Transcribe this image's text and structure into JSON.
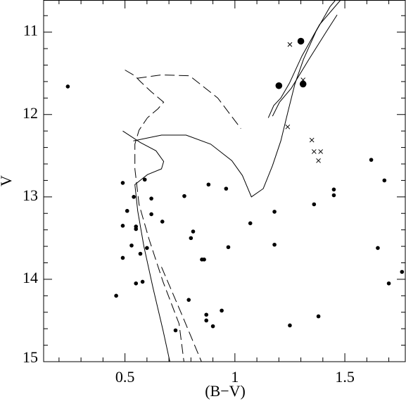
{
  "chart_data": {
    "type": "scatter",
    "xlabel": "(B−V)",
    "ylabel": "V",
    "xlim": [
      0.13,
      1.775
    ],
    "ylim": [
      10.61,
      15
    ],
    "y_inverted": true,
    "xticks": [
      0.5,
      1,
      1.5
    ],
    "yticks": [
      11,
      12,
      13,
      14,
      15
    ],
    "xminorticks": [
      0.2,
      0.3,
      0.4,
      0.6,
      0.7,
      0.8,
      0.9,
      1.1,
      1.2,
      1.3,
      1.4,
      1.6,
      1.7
    ],
    "yminorticks": [
      10.8,
      11.2,
      11.4,
      11.6,
      11.8,
      12.2,
      12.4,
      12.6,
      12.8,
      13.2,
      13.4,
      13.6,
      13.8,
      14.2,
      14.4,
      14.6,
      14.8
    ],
    "series": [
      {
        "marker": "dot",
        "color": "#000000",
        "x": [
          0.24,
          0.49,
          0.59,
          0.51,
          0.54,
          0.49,
          0.55,
          0.55,
          0.62,
          0.62,
          0.67,
          0.53,
          0.57,
          0.6,
          0.49,
          0.46,
          0.55,
          0.58,
          0.77,
          0.88,
          0.96,
          0.81,
          0.8,
          0.85,
          0.86,
          0.97,
          0.79,
          0.87,
          0.87,
          0.9,
          0.94,
          0.73,
          1.07,
          1.18,
          1.18,
          1.25,
          1.36,
          1.45,
          1.45,
          1.38,
          1.62,
          1.68,
          1.65,
          1.76,
          1.7
        ],
        "values": [
          11.66,
          12.83,
          12.79,
          13.17,
          13.0,
          13.35,
          13.36,
          13.39,
          13.02,
          13.21,
          13.3,
          13.59,
          13.69,
          13.62,
          13.74,
          14.2,
          14.05,
          14.03,
          12.99,
          12.85,
          12.9,
          13.42,
          13.5,
          13.76,
          13.76,
          13.61,
          14.25,
          14.43,
          14.5,
          14.57,
          14.38,
          14.62,
          13.32,
          13.18,
          13.58,
          14.56,
          13.09,
          12.91,
          12.98,
          14.45,
          12.55,
          12.8,
          13.62,
          13.91,
          14.05
        ]
      },
      {
        "marker": "big-dot",
        "color": "#000000",
        "x": [
          1.3,
          1.2,
          1.31
        ],
        "values": [
          11.11,
          11.65,
          11.63
        ]
      },
      {
        "marker": "cross",
        "color": "#000000",
        "x": [
          1.25,
          1.31,
          1.24,
          1.35,
          1.36,
          1.39,
          1.38
        ],
        "values": [
          11.15,
          11.58,
          12.15,
          12.31,
          12.45,
          12.45,
          12.56
        ]
      }
    ],
    "lines": [
      {
        "style": "solid",
        "x": [
          0.704,
          0.673,
          0.628,
          0.586,
          0.558,
          0.545,
          0.602,
          0.666,
          0.676,
          0.641,
          0.57,
          0.49
        ],
        "values": [
          15.0,
          14.62,
          14.11,
          13.6,
          13.17,
          12.85,
          12.73,
          12.66,
          12.57,
          12.44,
          12.34,
          12.2
        ]
      },
      {
        "style": "solid",
        "x": [
          0.538,
          0.666,
          0.778,
          0.89,
          0.986,
          1.034,
          1.075,
          1.129,
          1.171,
          1.209,
          1.241,
          1.273,
          1.312,
          1.369,
          1.433,
          1.458
        ],
        "values": [
          12.32,
          12.25,
          12.25,
          12.36,
          12.56,
          12.74,
          13.0,
          12.9,
          12.62,
          12.32,
          11.97,
          11.63,
          11.33,
          10.99,
          10.69,
          10.61
        ]
      },
      {
        "style": "solid",
        "x": [
          1.152,
          1.177,
          1.209,
          1.248,
          1.305,
          1.385,
          1.481
        ],
        "values": [
          12.04,
          11.89,
          11.8,
          11.62,
          11.29,
          10.91,
          10.61
        ]
      },
      {
        "style": "solid",
        "x": [
          1.171,
          1.203,
          1.257,
          1.337,
          1.417,
          1.465
        ],
        "values": [
          12.02,
          11.85,
          11.68,
          11.33,
          10.99,
          10.79
        ]
      },
      {
        "style": "dashed",
        "x": [
          0.5,
          0.545,
          0.57,
          0.618,
          0.676,
          0.65,
          0.602,
          0.564,
          0.545,
          0.545,
          0.564,
          0.609,
          0.673,
          0.746,
          0.768
        ],
        "values": [
          11.46,
          11.53,
          11.6,
          11.72,
          11.85,
          11.93,
          12.04,
          12.19,
          12.36,
          12.66,
          13.09,
          13.51,
          14.03,
          14.54,
          15.0
        ]
      },
      {
        "style": "dashed",
        "x": [
          0.554,
          0.666,
          0.794,
          0.922,
          1.027
        ],
        "values": [
          11.56,
          11.52,
          11.53,
          11.8,
          12.17
        ]
      },
      {
        "style": "dashed",
        "x": [
          0.666,
          0.762,
          0.848
        ],
        "values": [
          13.85,
          14.45,
          15.0
        ]
      }
    ]
  }
}
